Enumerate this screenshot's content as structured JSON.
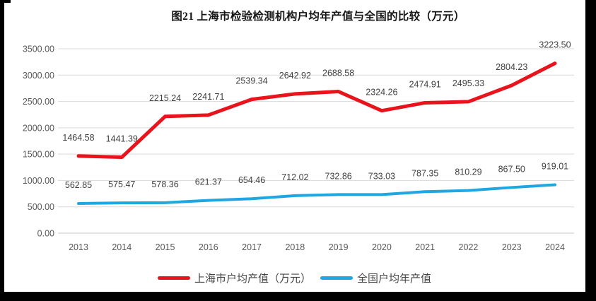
{
  "page": {
    "background": "#ffffff",
    "frame_color": "#000000"
  },
  "chart_data": {
    "type": "line",
    "title": "图21 上海市检验检测机构户均年产值与全国的比较（万元）",
    "categories": [
      "2013",
      "2014",
      "2015",
      "2016",
      "2017",
      "2018",
      "2019",
      "2020",
      "2021",
      "2022",
      "2023",
      "2024"
    ],
    "series": [
      {
        "name": "上海市户均产值（万元）",
        "color": "#e8131b",
        "values": [
          1464.58,
          1441.39,
          2215.24,
          2241.71,
          2539.34,
          2642.92,
          2688.58,
          2324.26,
          2474.91,
          2495.33,
          2804.23,
          3223.5
        ]
      },
      {
        "name": "全国户均年产值",
        "color": "#1ea7e0",
        "values": [
          562.85,
          575.47,
          578.36,
          621.37,
          654.46,
          712.02,
          732.86,
          733.03,
          787.35,
          810.29,
          867.5,
          919.01
        ]
      }
    ],
    "ylim": [
      0,
      3500
    ],
    "ytick_step": 500,
    "ytick_decimals": 2,
    "grid": true,
    "data_labels": true,
    "legend_position": "bottom",
    "gridline_color": "#d9d9d9",
    "axis_line_color": "#c6c6c6",
    "axis_text_color": "#595959",
    "label_color": "#3f3f3f"
  }
}
